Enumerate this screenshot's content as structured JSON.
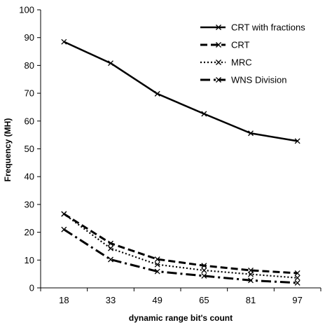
{
  "chart_data": {
    "type": "line",
    "title": "",
    "xlabel": "dynamic range bit's count",
    "ylabel": "Frequency (MH)",
    "categories": [
      "18",
      "33",
      "49",
      "65",
      "81",
      "97"
    ],
    "ylim": [
      0,
      100
    ],
    "ytick_step": 10,
    "grid": false,
    "legend_position": "top-right",
    "series": [
      {
        "name": "CRT with fractions",
        "dash": "solid",
        "values": [
          88.5,
          80.8,
          69.8,
          62.6,
          55.6,
          52.8
        ]
      },
      {
        "name": "CRT",
        "dash": "dash",
        "values": [
          26.6,
          16.0,
          10.3,
          8.0,
          6.3,
          5.3
        ]
      },
      {
        "name": "MRC",
        "dash": "dot",
        "values": [
          26.6,
          14.2,
          8.4,
          6.3,
          4.9,
          3.6
        ]
      },
      {
        "name": "WNS Division",
        "dash": "dashdot",
        "values": [
          21.0,
          10.2,
          5.9,
          4.3,
          2.7,
          1.8
        ]
      }
    ],
    "colors": {
      "line": "#000000",
      "axis": "#000000"
    }
  }
}
